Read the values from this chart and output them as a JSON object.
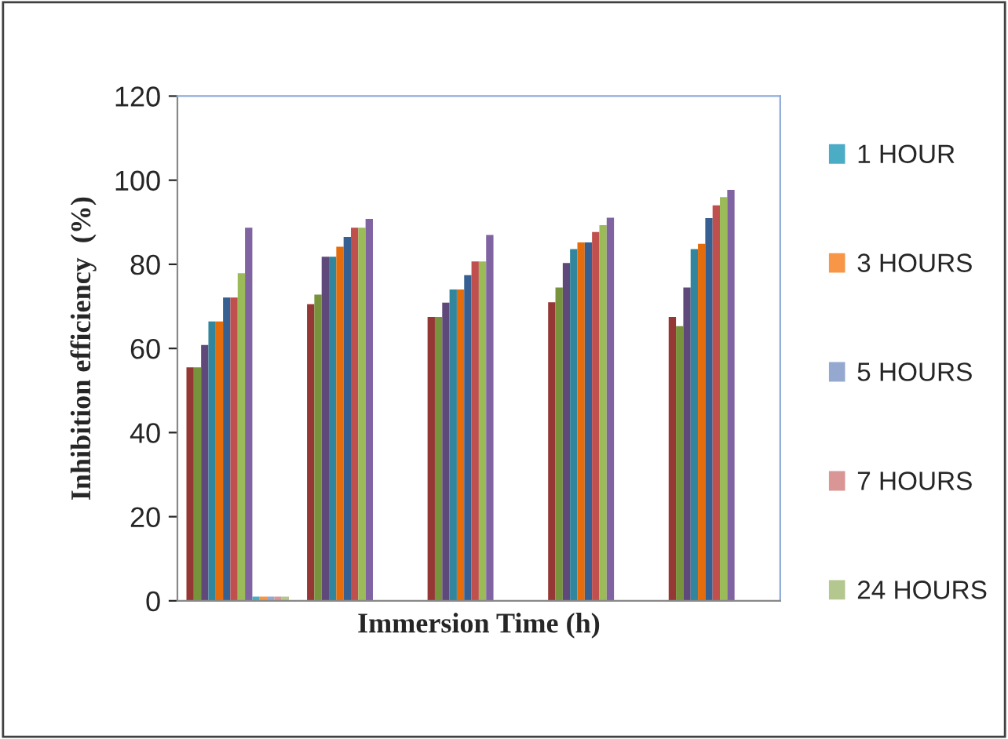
{
  "chart_data": {
    "type": "bar",
    "xlabel": "Immersion Time (h)",
    "ylabel": "Inhibition efficiency  (%)",
    "categories": [
      null,
      null,
      null,
      null,
      null
    ],
    "series": [
      {
        "color": "#953735",
        "values": [
          55.5,
          70.5,
          67.5,
          71,
          67.5
        ]
      },
      {
        "color": "#77933c",
        "values": [
          55.5,
          72.8,
          67.5,
          74.5,
          65.3
        ]
      },
      {
        "color": "#5f497a",
        "values": [
          60.8,
          81.8,
          70.9,
          80.3,
          74.5
        ]
      },
      {
        "color": "#31859c",
        "values": [
          66.4,
          81.8,
          74,
          83.6,
          83.6
        ]
      },
      {
        "color": "#e46c0a",
        "values": [
          66.4,
          84.2,
          74,
          85.2,
          84.9
        ]
      },
      {
        "color": "#376092",
        "values": [
          72.1,
          86.5,
          77.4,
          85.2,
          91
        ]
      },
      {
        "color": "#c0504d",
        "values": [
          72.1,
          88.7,
          80.7,
          87.7,
          94
        ]
      },
      {
        "color": "#9bbb59",
        "values": [
          77.9,
          88.7,
          80.7,
          89.3,
          96
        ]
      },
      {
        "color": "#8064a2",
        "values": [
          88.7,
          90.8,
          87,
          91.1,
          97.7
        ]
      },
      {
        "name": "1 HOUR",
        "color": "#4bacc6",
        "values": [
          1,
          null,
          null,
          null,
          null
        ]
      },
      {
        "name": "3 HOURS",
        "color": "#f79646",
        "values": [
          1,
          null,
          null,
          null,
          null
        ]
      },
      {
        "name": "5 HOURS",
        "color": "#95a9d0",
        "values": [
          1,
          null,
          null,
          null,
          null
        ]
      },
      {
        "name": "7 HOURS",
        "color": "#d99694",
        "values": [
          1,
          null,
          null,
          null,
          null
        ]
      },
      {
        "name": "24 HOURS",
        "color": "#b3c78f",
        "values": [
          1,
          null,
          null,
          null,
          null
        ]
      }
    ],
    "ylim": [
      0,
      120
    ],
    "yticks": [
      0,
      20,
      40,
      60,
      80,
      100,
      120
    ],
    "grid": false,
    "legend": "right"
  }
}
